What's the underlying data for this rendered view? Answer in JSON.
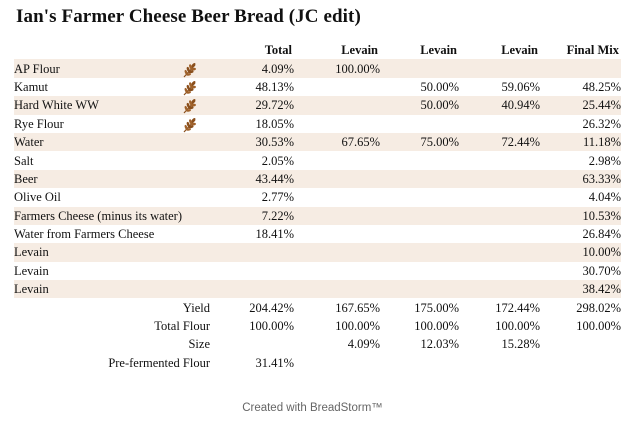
{
  "title": "Ian's Farmer Cheese Beer Bread (JC edit)",
  "headers": [
    "Total",
    "Levain",
    "Levain",
    "Levain",
    "Final Mix"
  ],
  "rows": [
    {
      "name": "AP Flour",
      "flour": true,
      "total": "4.09%",
      "levain1": "100.00%",
      "levain2": "",
      "levain3": "",
      "final": ""
    },
    {
      "name": "Kamut",
      "flour": true,
      "total": "48.13%",
      "levain1": "",
      "levain2": "50.00%",
      "levain3": "59.06%",
      "final": "48.25%"
    },
    {
      "name": "Hard White WW",
      "flour": true,
      "total": "29.72%",
      "levain1": "",
      "levain2": "50.00%",
      "levain3": "40.94%",
      "final": "25.44%"
    },
    {
      "name": "Rye Flour",
      "flour": true,
      "total": "18.05%",
      "levain1": "",
      "levain2": "",
      "levain3": "",
      "final": "26.32%"
    },
    {
      "name": "Water",
      "flour": false,
      "total": "30.53%",
      "levain1": "67.65%",
      "levain2": "75.00%",
      "levain3": "72.44%",
      "final": "11.18%"
    },
    {
      "name": "Salt",
      "flour": false,
      "total": "2.05%",
      "levain1": "",
      "levain2": "",
      "levain3": "",
      "final": "2.98%"
    },
    {
      "name": "Beer",
      "flour": false,
      "total": "43.44%",
      "levain1": "",
      "levain2": "",
      "levain3": "",
      "final": "63.33%"
    },
    {
      "name": "Olive Oil",
      "flour": false,
      "total": "2.77%",
      "levain1": "",
      "levain2": "",
      "levain3": "",
      "final": "4.04%"
    },
    {
      "name": "Farmers Cheese (minus its water)",
      "flour": false,
      "total": "7.22%",
      "levain1": "",
      "levain2": "",
      "levain3": "",
      "final": "10.53%"
    },
    {
      "name": "Water from Farmers Cheese",
      "flour": false,
      "total": "18.41%",
      "levain1": "",
      "levain2": "",
      "levain3": "",
      "final": "26.84%"
    },
    {
      "name": "Levain",
      "flour": false,
      "total": "",
      "levain1": "",
      "levain2": "",
      "levain3": "",
      "final": "10.00%"
    },
    {
      "name": "Levain",
      "flour": false,
      "total": "",
      "levain1": "",
      "levain2": "",
      "levain3": "",
      "final": "30.70%"
    },
    {
      "name": "Levain",
      "flour": false,
      "total": "",
      "levain1": "",
      "levain2": "",
      "levain3": "",
      "final": "38.42%"
    }
  ],
  "summary": [
    {
      "label": "Yield",
      "total": "204.42%",
      "levain1": "167.65%",
      "levain2": "175.00%",
      "levain3": "172.44%",
      "final": "298.02%"
    },
    {
      "label": "Total Flour",
      "total": "100.00%",
      "levain1": "100.00%",
      "levain2": "100.00%",
      "levain3": "100.00%",
      "final": "100.00%"
    },
    {
      "label": "Size",
      "total": "",
      "levain1": "4.09%",
      "levain2": "12.03%",
      "levain3": "15.28%",
      "final": ""
    },
    {
      "label": "Pre-fermented Flour",
      "total": "31.41%",
      "levain1": "",
      "levain2": "",
      "levain3": "",
      "final": ""
    }
  ],
  "icon": "wheat-icon",
  "colors": {
    "stripe": "#f6ece3",
    "wheat": "#8a4f1c"
  },
  "footer": "Created with BreadStorm™"
}
